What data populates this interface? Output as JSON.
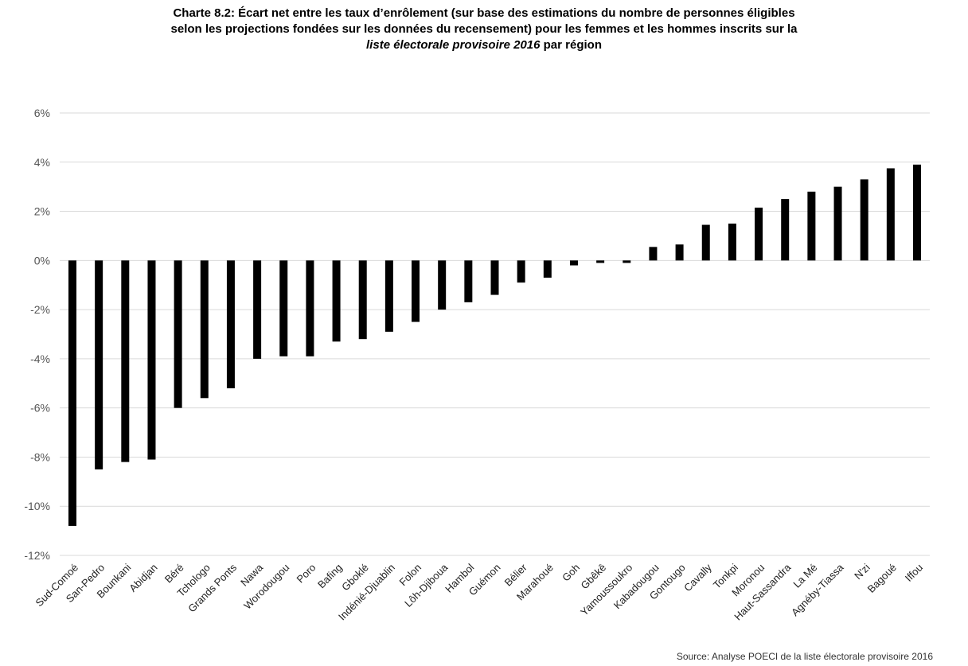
{
  "title": {
    "line1": "Charte 8.2:  Écart net entre les taux d’enrôlement (sur base des estimations du nombre de personnes éligibles",
    "line2": "selon les projections fondées sur les données du recensement) pour les femmes et les hommes inscrits sur la",
    "line3_italic": "liste électorale provisoire 2016",
    "line3_rest": " par région"
  },
  "source": "Source: Analyse POECI de la liste électorale provisoire 2016",
  "colors": {
    "bar": "#000000",
    "grid": "#d9d9d9",
    "tick_text": "#555555"
  },
  "chart_data": {
    "type": "bar",
    "categories": [
      "Sud-Comoé",
      "San-Pedro",
      "Bounkani",
      "Abidjan",
      "Béré",
      "Tchologo",
      "Grands Ponts",
      "Nawa",
      "Worodougou",
      "Poro",
      "Bafing",
      "Gboklé",
      "Indénié-Djuablin",
      "Folon",
      "Lôh-Djiboua",
      "Hambol",
      "Guémon",
      "Bélier",
      "Marahoué",
      "Goh",
      "Gbêkê",
      "Yamoussoukro",
      "Kabadougou",
      "Gontougo",
      "Cavally",
      "Tonkpi",
      "Moronou",
      "Haut-Sassandra",
      "La Mé",
      "Agnéby-Tiassa",
      "N'zi",
      "Bagoué",
      "Iffou"
    ],
    "values": [
      -10.8,
      -8.5,
      -8.2,
      -8.1,
      -6.0,
      -5.6,
      -5.2,
      -4.0,
      -3.9,
      -3.9,
      -3.3,
      -3.2,
      -2.9,
      -2.5,
      -2.0,
      -1.7,
      -1.4,
      -0.9,
      -0.7,
      -0.2,
      -0.1,
      -0.1,
      0.55,
      0.65,
      1.45,
      1.5,
      2.15,
      2.5,
      2.8,
      3.0,
      3.3,
      3.75,
      3.9
    ],
    "title": "",
    "xlabel": "",
    "ylabel": "",
    "ylim": [
      -12,
      6
    ],
    "yticks": [
      6,
      4,
      2,
      0,
      -2,
      -4,
      -6,
      -8,
      -10,
      -12
    ],
    "ytick_labels": [
      "6%",
      "4%",
      "2%",
      "0%",
      "-2%",
      "-4%",
      "-6%",
      "-8%",
      "-10%",
      "-12%"
    ],
    "grid": true,
    "legend": "none"
  }
}
